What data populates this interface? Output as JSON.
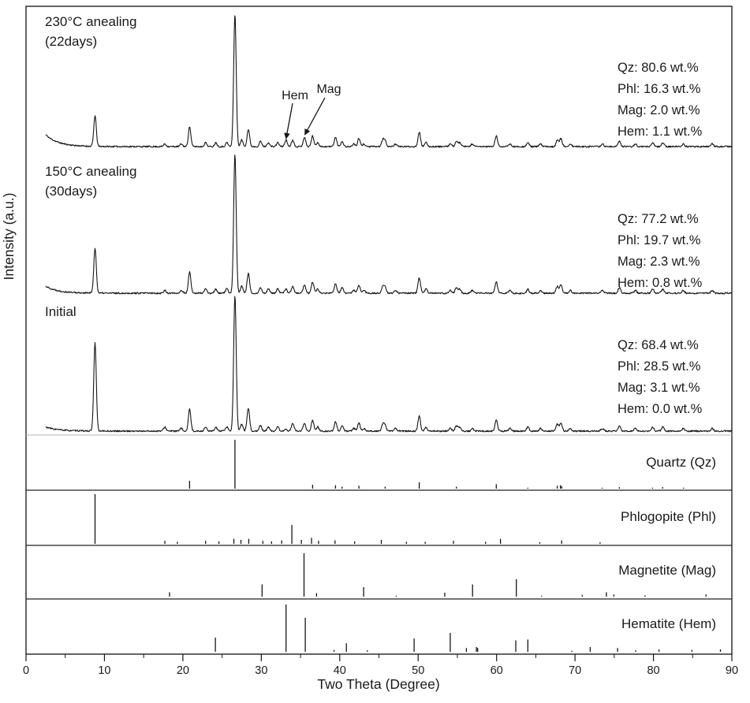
{
  "figure": {
    "xlabel": "Two Theta (Degree)",
    "ylabel": "Intensity (a.u.)",
    "x_ticks": [
      "0",
      "10",
      "20",
      "30",
      "40",
      "50",
      "60",
      "70",
      "80",
      "90"
    ]
  },
  "chart_data": {
    "type": "line",
    "title": "",
    "xlabel": "Two Theta (Degree)",
    "ylabel": "Intensity (a.u.)",
    "xlim": [
      0,
      90
    ],
    "grid": false,
    "patterns": [
      {
        "id": "anneal-230",
        "label_line1": "230°C anealing",
        "label_line2": "(22days)",
        "composition": [
          "Qz: 80.6 wt.%",
          "Phl: 16.3 wt.%",
          "Mag: 2.0 wt.%",
          "Hem: 1.1 wt.%"
        ],
        "left_decay": 9,
        "peaks": [
          [
            8.8,
            23
          ],
          [
            17.7,
            2
          ],
          [
            19.8,
            2
          ],
          [
            20.86,
            15
          ],
          [
            22.9,
            3
          ],
          [
            24.2,
            3
          ],
          [
            25.6,
            3
          ],
          [
            26.64,
            100
          ],
          [
            27.5,
            5
          ],
          [
            28.35,
            13
          ],
          [
            29.9,
            4
          ],
          [
            30.9,
            3
          ],
          [
            32.1,
            3
          ],
          [
            33.15,
            5
          ],
          [
            34.0,
            5
          ],
          [
            35.5,
            7
          ],
          [
            36.54,
            8
          ],
          [
            37.2,
            3
          ],
          [
            39.46,
            7
          ],
          [
            40.3,
            4
          ],
          [
            41.8,
            2
          ],
          [
            42.45,
            6
          ],
          [
            43.1,
            2
          ],
          [
            45.5,
            5
          ],
          [
            45.79,
            4
          ],
          [
            47.1,
            2
          ],
          [
            50.14,
            11
          ],
          [
            51.0,
            3
          ],
          [
            54.1,
            2
          ],
          [
            54.87,
            4
          ],
          [
            55.3,
            3
          ],
          [
            56.9,
            2
          ],
          [
            59.96,
            8
          ],
          [
            61.7,
            2
          ],
          [
            63.99,
            3
          ],
          [
            65.6,
            2
          ],
          [
            67.74,
            5
          ],
          [
            68.2,
            6
          ],
          [
            69.4,
            2
          ],
          [
            73.5,
            2
          ],
          [
            75.66,
            4
          ],
          [
            77.7,
            2
          ],
          [
            79.9,
            3
          ],
          [
            81.2,
            3
          ],
          [
            83.8,
            2
          ],
          [
            87.5,
            2
          ]
        ]
      },
      {
        "id": "anneal-150",
        "label_line1": "150°C anealing",
        "label_line2": "(30days)",
        "composition": [
          "Qz: 77.2 wt.%",
          "Phl: 19.7 wt.%",
          "Mag: 2.3 wt.%",
          "Hem: 0.8 wt.%"
        ],
        "left_decay": 5,
        "peaks": [
          [
            8.8,
            32
          ],
          [
            17.7,
            2
          ],
          [
            19.8,
            2
          ],
          [
            20.86,
            15
          ],
          [
            22.9,
            3
          ],
          [
            24.2,
            3
          ],
          [
            25.6,
            3
          ],
          [
            26.64,
            100
          ],
          [
            27.5,
            5
          ],
          [
            28.35,
            14
          ],
          [
            29.9,
            4
          ],
          [
            30.9,
            3
          ],
          [
            32.1,
            3
          ],
          [
            33.15,
            3
          ],
          [
            34.0,
            5
          ],
          [
            35.5,
            6
          ],
          [
            36.54,
            8
          ],
          [
            37.2,
            3
          ],
          [
            39.46,
            7
          ],
          [
            40.3,
            4
          ],
          [
            41.8,
            2
          ],
          [
            42.45,
            6
          ],
          [
            43.1,
            2
          ],
          [
            45.5,
            5
          ],
          [
            45.79,
            4
          ],
          [
            47.1,
            2
          ],
          [
            50.14,
            11
          ],
          [
            51.0,
            3
          ],
          [
            54.1,
            2
          ],
          [
            54.87,
            4
          ],
          [
            55.3,
            3
          ],
          [
            56.9,
            2
          ],
          [
            59.96,
            8
          ],
          [
            61.7,
            2
          ],
          [
            63.99,
            3
          ],
          [
            65.6,
            2
          ],
          [
            67.74,
            5
          ],
          [
            68.2,
            6
          ],
          [
            69.4,
            2
          ],
          [
            73.5,
            2
          ],
          [
            75.66,
            4
          ],
          [
            77.7,
            2
          ],
          [
            79.9,
            3
          ],
          [
            81.2,
            3
          ],
          [
            83.8,
            2
          ],
          [
            87.5,
            2
          ]
        ]
      },
      {
        "id": "initial",
        "label_line1": "Initial",
        "label_line2": "",
        "composition": [
          "Qz: 68.4 wt.%",
          "Phl: 28.5 wt.%",
          "Mag: 3.1 wt.%",
          "Hem: 0.0 wt.%"
        ],
        "left_decay": 3,
        "peaks": [
          [
            8.8,
            65
          ],
          [
            17.7,
            3
          ],
          [
            19.8,
            2
          ],
          [
            20.86,
            16
          ],
          [
            22.9,
            3
          ],
          [
            24.2,
            3
          ],
          [
            25.6,
            3
          ],
          [
            26.64,
            100
          ],
          [
            27.5,
            5
          ],
          [
            28.35,
            17
          ],
          [
            29.9,
            4
          ],
          [
            30.9,
            3
          ],
          [
            32.1,
            3
          ],
          [
            33.15,
            1
          ],
          [
            34.0,
            6
          ],
          [
            35.5,
            6
          ],
          [
            36.54,
            8
          ],
          [
            37.2,
            3
          ],
          [
            39.46,
            7
          ],
          [
            40.3,
            4
          ],
          [
            41.8,
            2
          ],
          [
            42.45,
            6
          ],
          [
            43.1,
            2
          ],
          [
            45.5,
            5
          ],
          [
            45.79,
            4
          ],
          [
            47.1,
            2
          ],
          [
            50.14,
            11
          ],
          [
            51.0,
            3
          ],
          [
            54.1,
            2
          ],
          [
            54.87,
            4
          ],
          [
            55.3,
            3
          ],
          [
            56.9,
            2
          ],
          [
            59.96,
            8
          ],
          [
            61.7,
            2
          ],
          [
            63.99,
            3
          ],
          [
            65.6,
            2
          ],
          [
            67.74,
            5
          ],
          [
            68.2,
            6
          ],
          [
            69.4,
            2
          ],
          [
            73.5,
            2
          ],
          [
            75.66,
            4
          ],
          [
            77.7,
            2
          ],
          [
            79.9,
            3
          ],
          [
            81.2,
            3
          ],
          [
            83.8,
            2
          ],
          [
            87.5,
            2
          ]
        ]
      }
    ],
    "references": [
      {
        "id": "quartz",
        "label": "Quartz (Qz)",
        "peaks": [
          [
            20.86,
            16
          ],
          [
            26.64,
            100
          ],
          [
            36.54,
            8
          ],
          [
            39.46,
            7
          ],
          [
            40.3,
            4
          ],
          [
            42.45,
            6
          ],
          [
            45.79,
            4
          ],
          [
            50.14,
            13
          ],
          [
            54.87,
            4
          ],
          [
            59.96,
            9
          ],
          [
            63.99,
            2
          ],
          [
            67.74,
            6
          ],
          [
            68.14,
            7
          ],
          [
            68.31,
            5
          ],
          [
            73.46,
            2
          ],
          [
            75.66,
            3
          ],
          [
            79.88,
            2
          ],
          [
            81.17,
            3
          ],
          [
            83.84,
            2
          ]
        ]
      },
      {
        "id": "phlogopite",
        "label": "Phlogopite (Phl)",
        "peaks": [
          [
            8.8,
            100
          ],
          [
            17.7,
            6
          ],
          [
            19.3,
            4
          ],
          [
            22.9,
            6
          ],
          [
            24.6,
            5
          ],
          [
            26.5,
            10
          ],
          [
            27.4,
            8
          ],
          [
            28.4,
            10
          ],
          [
            30.2,
            6
          ],
          [
            31.3,
            5
          ],
          [
            32.6,
            7
          ],
          [
            33.9,
            38
          ],
          [
            35.1,
            8
          ],
          [
            36.4,
            12
          ],
          [
            37.3,
            6
          ],
          [
            39.4,
            7
          ],
          [
            41.9,
            5
          ],
          [
            45.3,
            8
          ],
          [
            48.5,
            4
          ],
          [
            50.9,
            4
          ],
          [
            54.5,
            6
          ],
          [
            58.6,
            4
          ],
          [
            60.5,
            10
          ],
          [
            65.5,
            3
          ],
          [
            68.3,
            7
          ],
          [
            73.2,
            3
          ]
        ]
      },
      {
        "id": "magnetite",
        "label": "Magnetite (Mag)",
        "peaks": [
          [
            18.3,
            10
          ],
          [
            30.1,
            28
          ],
          [
            35.45,
            100
          ],
          [
            37.05,
            8
          ],
          [
            43.05,
            22
          ],
          [
            47.2,
            2
          ],
          [
            53.4,
            9
          ],
          [
            56.94,
            28
          ],
          [
            62.52,
            40
          ],
          [
            65.74,
            2
          ],
          [
            70.92,
            4
          ],
          [
            74.0,
            10
          ],
          [
            74.96,
            5
          ],
          [
            78.93,
            3
          ],
          [
            86.7,
            5
          ]
        ]
      },
      {
        "id": "hematite",
        "label": "Hematite (Hem)",
        "peaks": [
          [
            24.14,
            30
          ],
          [
            33.15,
            100
          ],
          [
            35.61,
            72
          ],
          [
            39.28,
            4
          ],
          [
            40.85,
            18
          ],
          [
            43.52,
            3
          ],
          [
            49.48,
            28
          ],
          [
            54.09,
            40
          ],
          [
            56.15,
            8
          ],
          [
            57.43,
            10
          ],
          [
            57.59,
            8
          ],
          [
            62.45,
            24
          ],
          [
            63.99,
            26
          ],
          [
            69.6,
            2
          ],
          [
            71.94,
            10
          ],
          [
            75.43,
            8
          ],
          [
            77.73,
            3
          ],
          [
            80.71,
            5
          ],
          [
            84.91,
            4
          ],
          [
            88.54,
            5
          ]
        ]
      }
    ],
    "annotations": [
      {
        "text": "Hem",
        "target_two_theta": 33.15
      },
      {
        "text": "Mag",
        "target_two_theta": 35.55
      }
    ]
  }
}
